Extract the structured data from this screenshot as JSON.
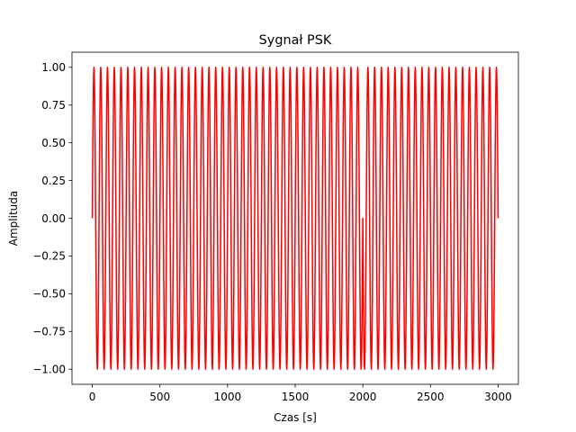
{
  "chart_data": {
    "type": "line",
    "title": "Sygnał PSK",
    "xlabel": "Czas [s]",
    "ylabel": "Amplituda",
    "xlim": [
      -150,
      3150
    ],
    "ylim": [
      -1.1,
      1.1
    ],
    "x_ticks": [
      0,
      500,
      1000,
      1500,
      2000,
      2500,
      3000
    ],
    "x_tick_labels": [
      "0",
      "500",
      "1000",
      "1500",
      "2000",
      "2500",
      "3000"
    ],
    "y_ticks": [
      -1.0,
      -0.75,
      -0.5,
      -0.25,
      0.0,
      0.25,
      0.5,
      0.75,
      1.0
    ],
    "y_tick_labels": [
      "−1.00",
      "−0.75",
      "−0.50",
      "−0.25",
      "0.00",
      "0.25",
      "0.50",
      "0.75",
      "1.00"
    ],
    "grid": false,
    "legend": "none",
    "series": [
      {
        "color": "#ff0000",
        "segments": [
          {
            "x_start": 0,
            "x_end": 2000,
            "cycles": 40,
            "phase_deg": 0
          },
          {
            "x_start": 2000,
            "x_end": 3000,
            "cycles": 20,
            "phase_deg": 180
          }
        ]
      }
    ]
  }
}
